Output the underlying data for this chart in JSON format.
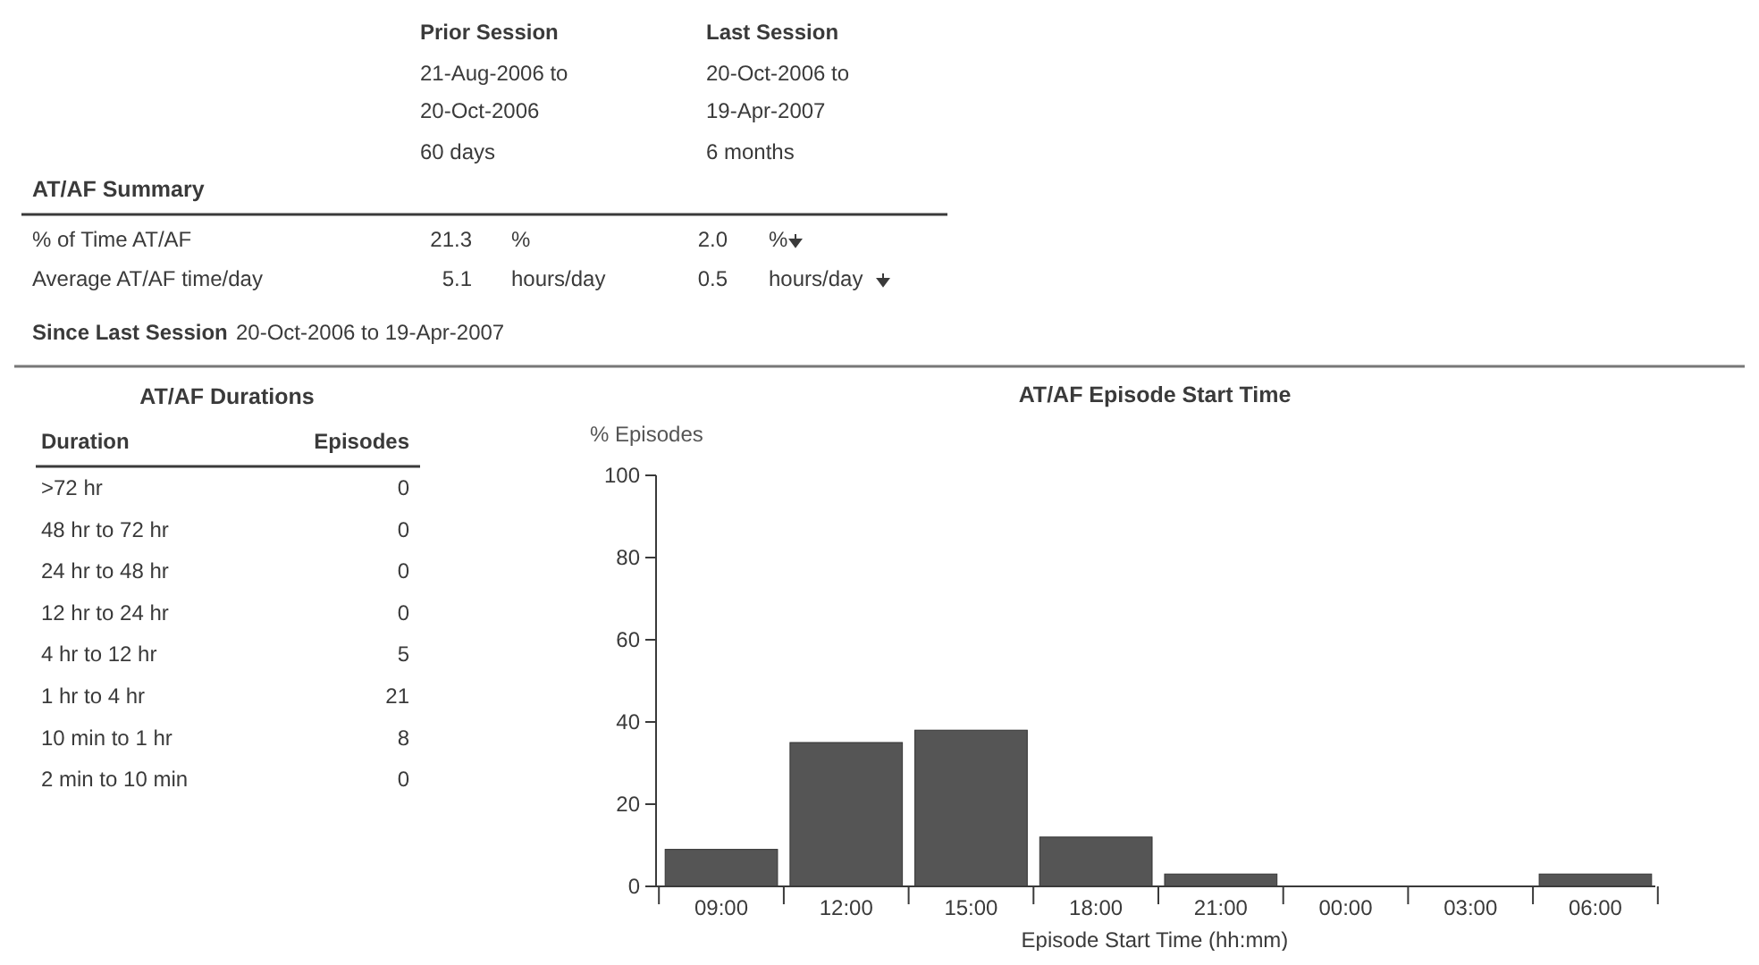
{
  "chart_data": [
    {
      "type": "other",
      "title": "AT/AF Summary",
      "annotations": [
        "Prior Session",
        "21-Aug-2006 to",
        "20-Oct-2006",
        "60 days",
        "Last Session",
        "20-Oct-2006 to",
        "19-Apr-2007",
        "6 months",
        "% of Time AT/AF",
        "21.3",
        "%",
        "2.0",
        "%",
        "Average AT/AF time/day",
        "5.1",
        "hours/day",
        "0.5",
        "hours/day",
        "Since Last Session",
        "20-Oct-2006 to 19-Apr-2007"
      ]
    },
    {
      "type": "other",
      "title": "AT/AF Durations",
      "annotations": [
        "Duration",
        "Episodes",
        ">72 hr",
        "0",
        "48 hr to 72 hr",
        "0",
        "24 hr to 48 hr",
        "0",
        "12 hr to 24 hr",
        "0",
        "4 hr to 12 hr",
        "5",
        "1 hr to 4 hr",
        "21",
        "10 min to 1 hr",
        "8",
        "2 min to 10 min",
        "0"
      ]
    },
    {
      "type": "bar",
      "title": "AT/AF Episode Start Time",
      "xlabel": "Episode Start Time (hh:mm)",
      "ylabel": "% Episodes",
      "categories": [
        "09:00",
        "12:00",
        "15:00",
        "18:00",
        "21:00",
        "00:00",
        "03:00",
        "06:00"
      ],
      "values": [
        9,
        35,
        38,
        12,
        3,
        0,
        0,
        3
      ],
      "color": "#555555",
      "ylim": [
        0,
        100
      ],
      "yticks": [
        0,
        20,
        40,
        60,
        80,
        100
      ]
    }
  ]
}
